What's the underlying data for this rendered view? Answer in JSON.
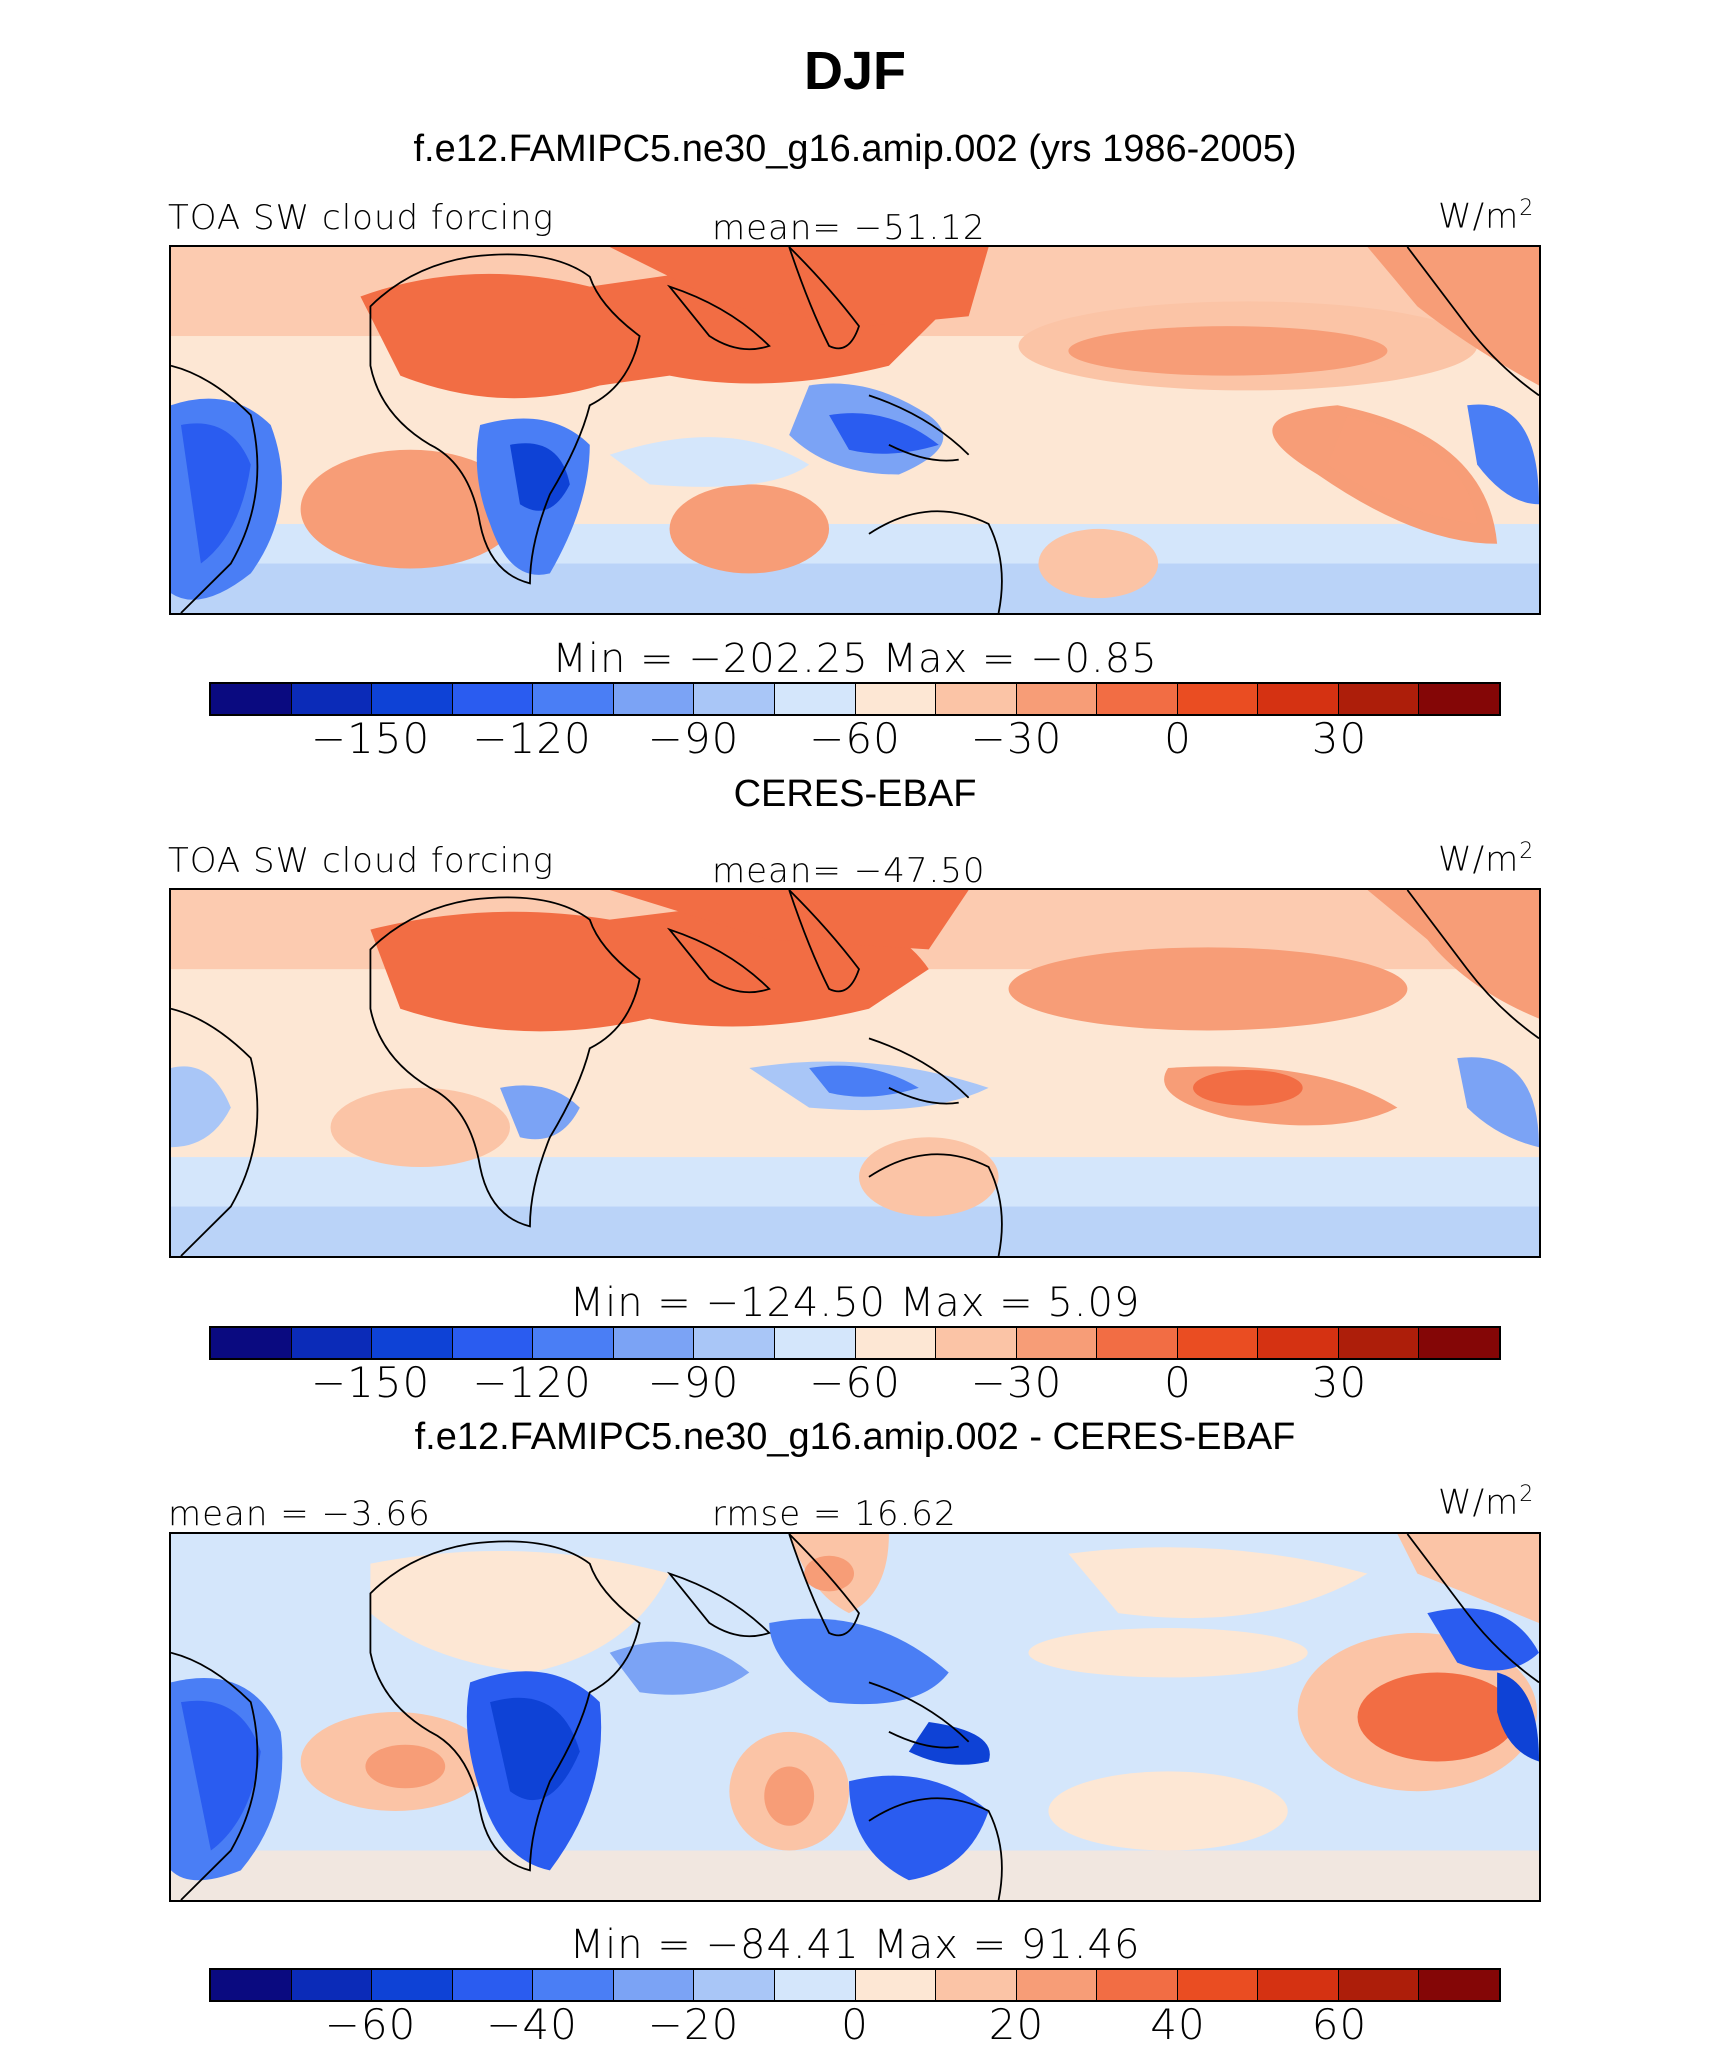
{
  "title": "DJF",
  "colors": [
    "#0a0a80",
    "#0b2bb8",
    "#0e42d6",
    "#2a5cf0",
    "#4a7ef5",
    "#7ba3f5",
    "#a9c6f7",
    "#d4e6fb",
    "#fde7d4",
    "#fbc4a6",
    "#f79d77",
    "#f26d44",
    "#ea4d22",
    "#d53212",
    "#ad1e0a",
    "#840606"
  ],
  "panels": [
    {
      "subtitle": "f.e12.FAMIPC5.ne30_g16.amip.002 (yrs 1986-2005)",
      "left_label": "TOA SW cloud forcing",
      "center_label": "mean=  −51.12",
      "units": "W/m",
      "units_sup": "2",
      "minmax": "Min  =  −202.25  Max  =    −0.85",
      "ticks": [
        "−150",
        "−120",
        "−90",
        "−60",
        "−30",
        "0",
        "30"
      ]
    },
    {
      "subtitle": "CERES-EBAF",
      "left_label": "TOA SW cloud forcing",
      "center_label": "mean=  −47.50",
      "units": "W/m",
      "units_sup": "2",
      "minmax": "Min  =  −124.50  Max  =     5.09",
      "ticks": [
        "−150",
        "−120",
        "−90",
        "−60",
        "−30",
        "0",
        "30"
      ]
    },
    {
      "subtitle": "f.e12.FAMIPC5.ne30_g16.amip.002 - CERES-EBAF",
      "left_label": "mean  =   −3.66",
      "center_label": "rmse  =   16.62",
      "units": "W/m",
      "units_sup": "2",
      "minmax": "Min  =  −84.41  Max  =   91.46",
      "ticks": [
        "−60",
        "−40",
        "−20",
        "0",
        "20",
        "40",
        "60"
      ]
    }
  ]
}
